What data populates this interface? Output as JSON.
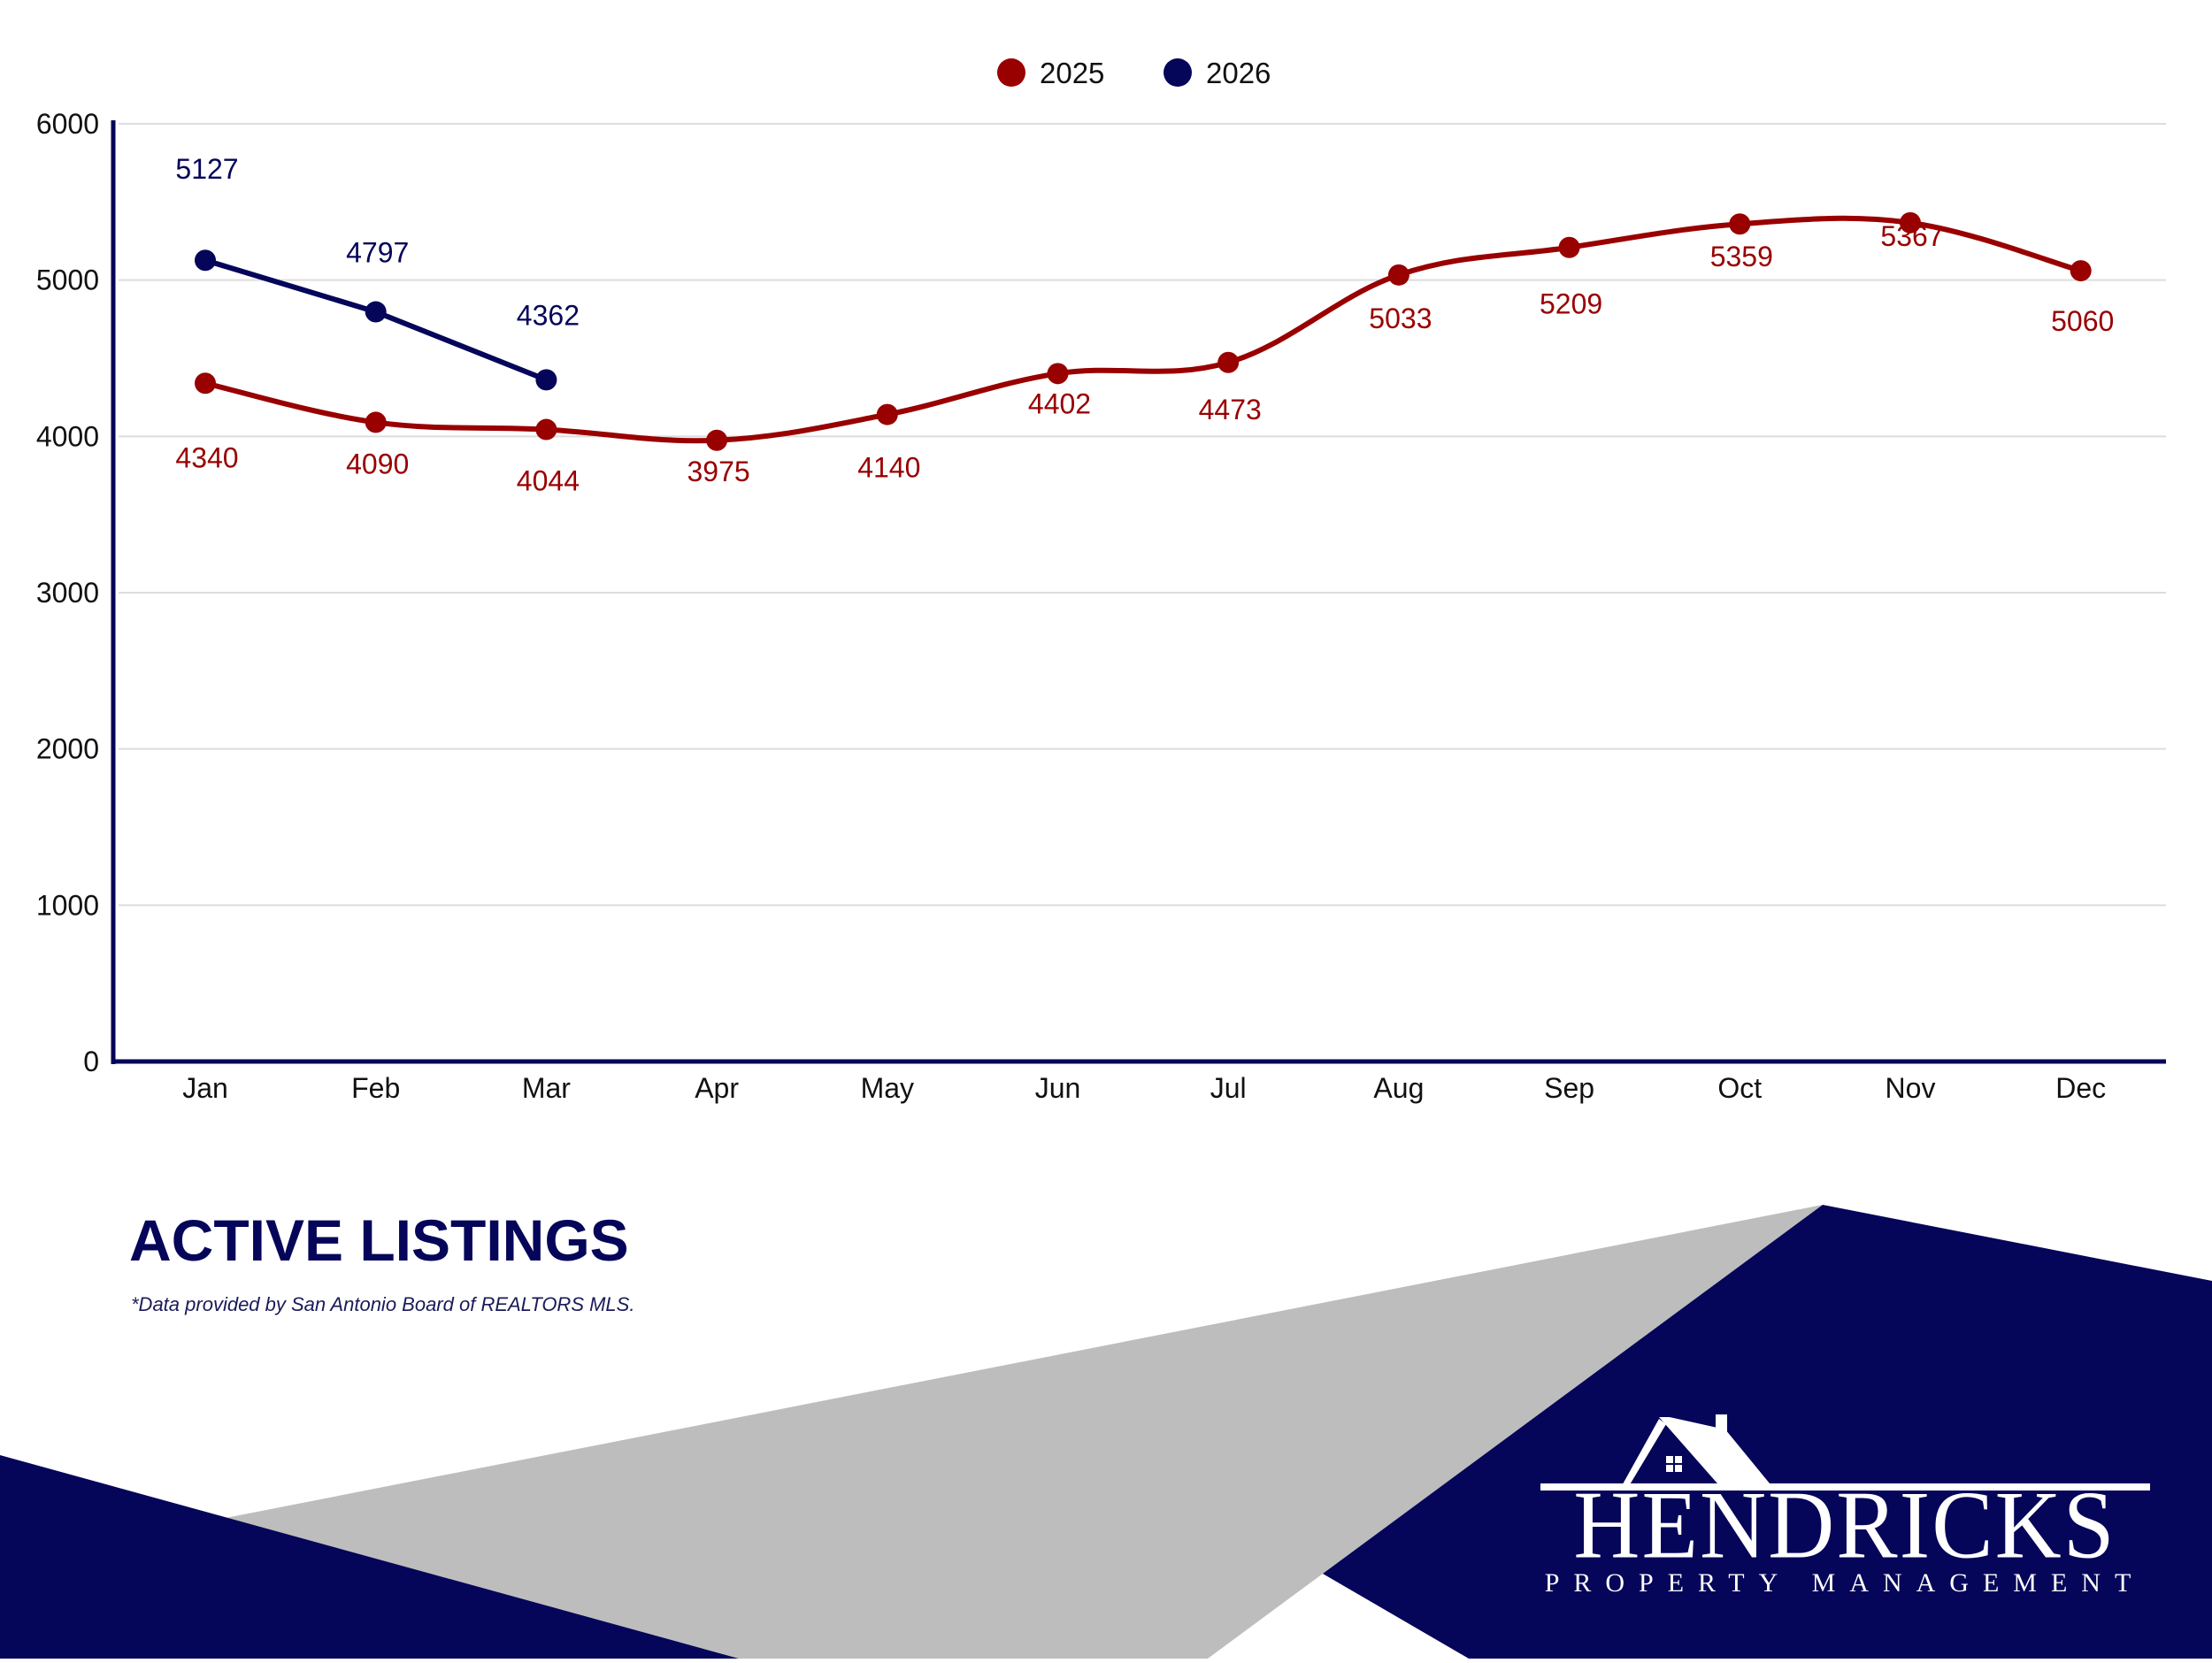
{
  "colors": {
    "series_2025": "#990000",
    "series_2026": "#05055a",
    "axis": "#05055a",
    "grid": "#dddddd",
    "navy": "#05055a",
    "gray": "#bdbdbd"
  },
  "legend": {
    "items": [
      {
        "label": "2025",
        "color": "#990000"
      },
      {
        "label": "2026",
        "color": "#05055a"
      }
    ]
  },
  "title": "ACTIVE LISTINGS",
  "source_note": "*Data provided by San Antonio Board of REALTORS MLS.",
  "logo": {
    "name": "HENDRICKS",
    "subtitle": "PROPERTY MANAGEMENT"
  },
  "chart_data": {
    "type": "line",
    "title": "ACTIVE LISTINGS",
    "xlabel": "",
    "ylabel": "",
    "categories": [
      "Jan",
      "Feb",
      "Mar",
      "Apr",
      "May",
      "Jun",
      "Jul",
      "Aug",
      "Sep",
      "Oct",
      "Nov",
      "Dec"
    ],
    "series": [
      {
        "name": "2025",
        "color": "#990000",
        "smooth": true,
        "values": [
          4340,
          4090,
          4044,
          3975,
          4140,
          4402,
          4473,
          5033,
          5209,
          5359,
          5367,
          5060
        ]
      },
      {
        "name": "2026",
        "color": "#05055a",
        "smooth": false,
        "values": [
          5127,
          4797,
          4362,
          null,
          null,
          null,
          null,
          null,
          null,
          null,
          null,
          null
        ]
      }
    ],
    "ylim": [
      0,
      6000
    ],
    "yticks": [
      0,
      1000,
      2000,
      3000,
      4000,
      5000,
      6000
    ],
    "grid": true,
    "legend_position": "top-center",
    "data_labels": true
  }
}
